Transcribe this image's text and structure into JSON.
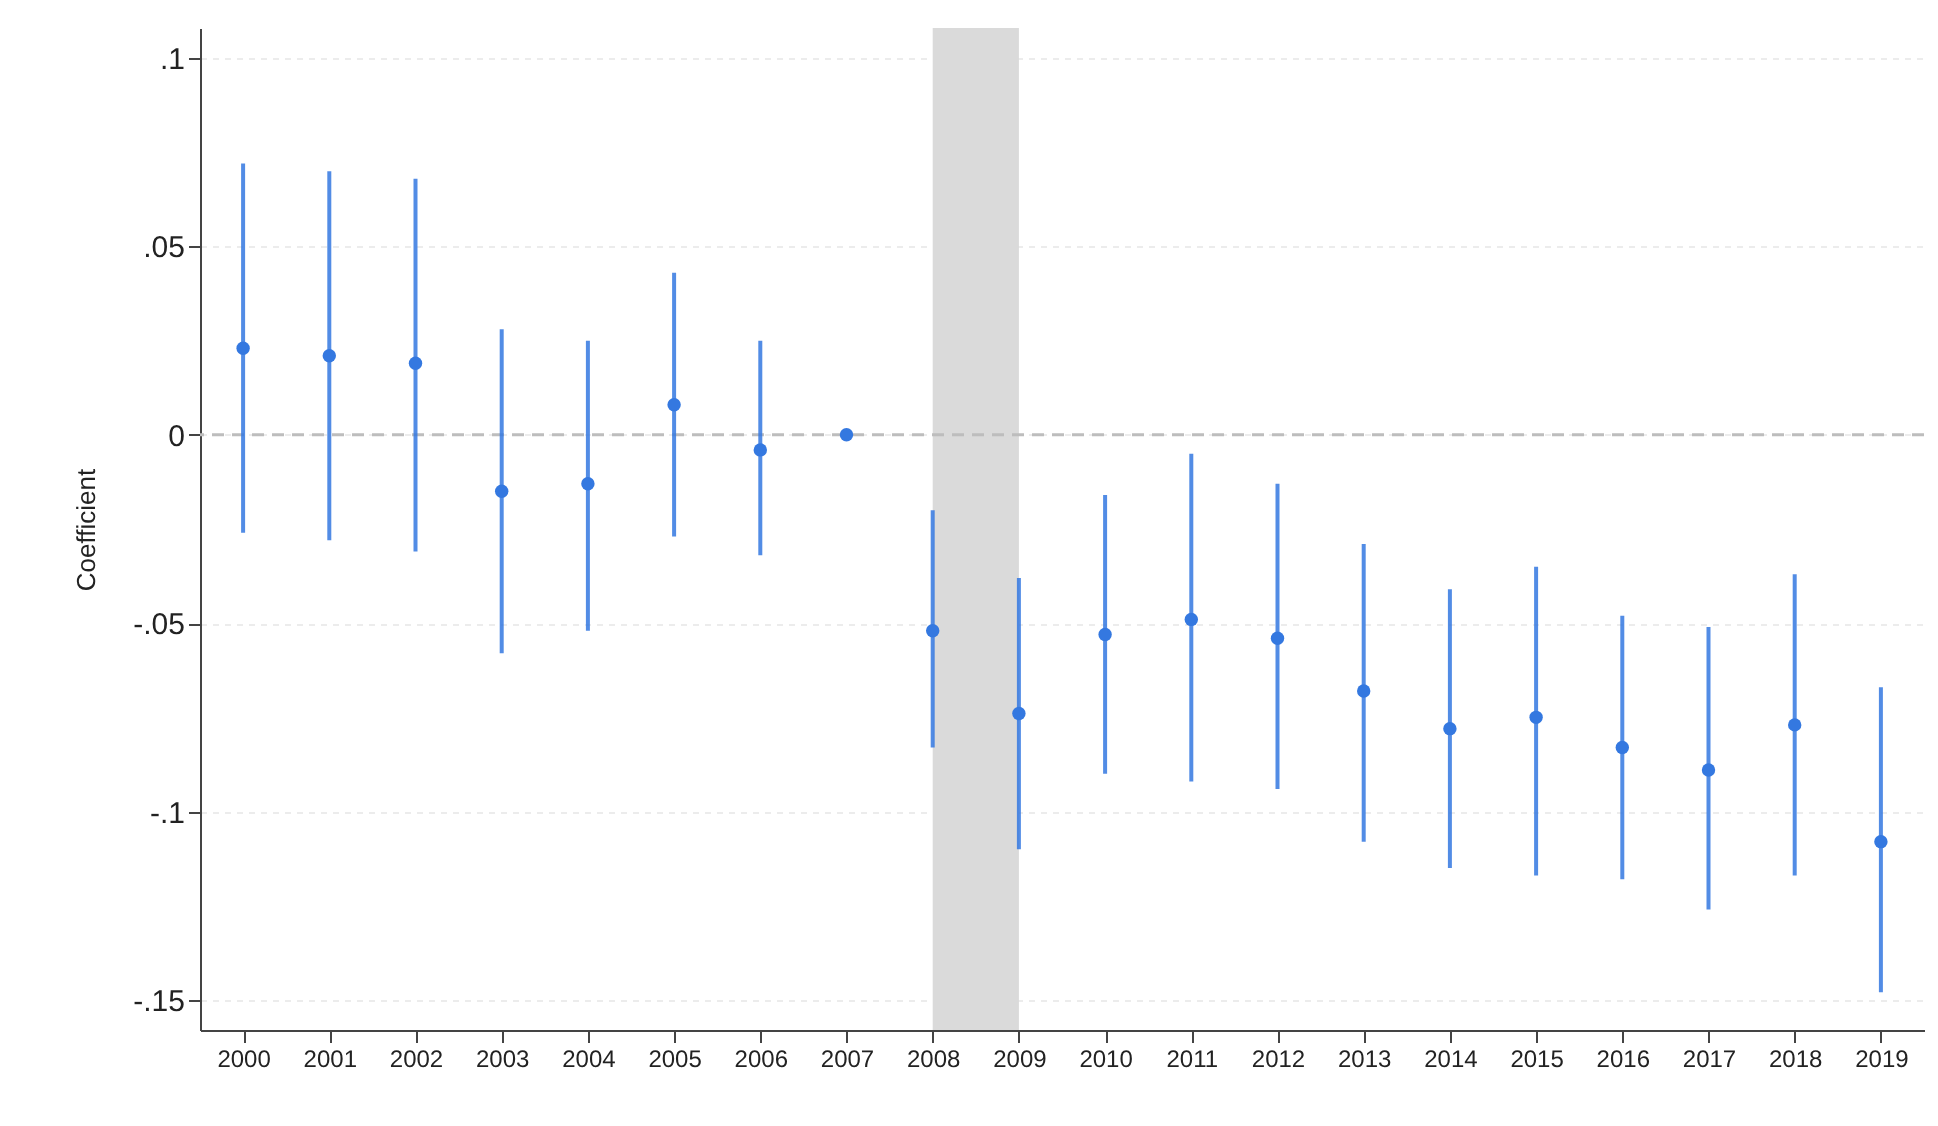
{
  "chart_data": {
    "type": "scatter",
    "ylabel": "Coefficient",
    "x": [
      2000,
      2001,
      2002,
      2003,
      2004,
      2005,
      2006,
      2007,
      2008,
      2009,
      2010,
      2011,
      2012,
      2013,
      2014,
      2015,
      2016,
      2017,
      2018,
      2019
    ],
    "series": [
      {
        "color": "#3478e0",
        "values": [
          0.023,
          0.021,
          0.019,
          -0.015,
          -0.013,
          0.008,
          -0.004,
          0,
          -0.052,
          -0.074,
          -0.053,
          -0.049,
          -0.054,
          -0.068,
          -0.078,
          -0.075,
          -0.083,
          -0.089,
          -0.077,
          -0.108
        ],
        "errors": [
          [
            -0.026,
            0.072
          ],
          [
            -0.028,
            0.07
          ],
          [
            -0.031,
            0.068
          ],
          [
            -0.058,
            0.028
          ],
          [
            -0.052,
            0.025
          ],
          [
            -0.027,
            0.043
          ],
          [
            -0.032,
            0.025
          ],
          null,
          [
            -0.083,
            -0.02
          ],
          [
            -0.11,
            -0.038
          ],
          [
            -0.09,
            -0.016
          ],
          [
            -0.092,
            -0.005
          ],
          [
            -0.094,
            -0.013
          ],
          [
            -0.108,
            -0.029
          ],
          [
            -0.115,
            -0.041
          ],
          [
            -0.117,
            -0.035
          ],
          [
            -0.118,
            -0.048
          ],
          [
            -0.126,
            -0.051
          ],
          [
            -0.117,
            -0.037
          ],
          [
            -0.148,
            -0.067
          ]
        ]
      }
    ],
    "xlim": [
      1999.5,
      2019.5
    ],
    "xticks": [
      2000,
      2001,
      2002,
      2003,
      2004,
      2005,
      2006,
      2007,
      2008,
      2009,
      2010,
      2011,
      2012,
      2013,
      2014,
      2015,
      2016,
      2017,
      2018,
      2019
    ],
    "ylim": [
      -0.158,
      0.108
    ],
    "yticks": [
      {
        "value": -0.15,
        "label": "-.15"
      },
      {
        "value": -0.1,
        "label": "-.1"
      },
      {
        "value": -0.05,
        "label": "-.05"
      },
      {
        "value": 0,
        "label": "0"
      },
      {
        "value": 0.05,
        "label": ".05"
      },
      {
        "value": 0.1,
        "label": ".1"
      }
    ],
    "grid": "y",
    "marker": "circle",
    "ref_lines": [
      {
        "axis": "y",
        "value": 0,
        "line_style": "dashed",
        "color": "#bdbdbd"
      }
    ],
    "bands": [
      {
        "axis": "x",
        "from": 2008,
        "to": 2009,
        "color": "#dadada"
      }
    ]
  }
}
